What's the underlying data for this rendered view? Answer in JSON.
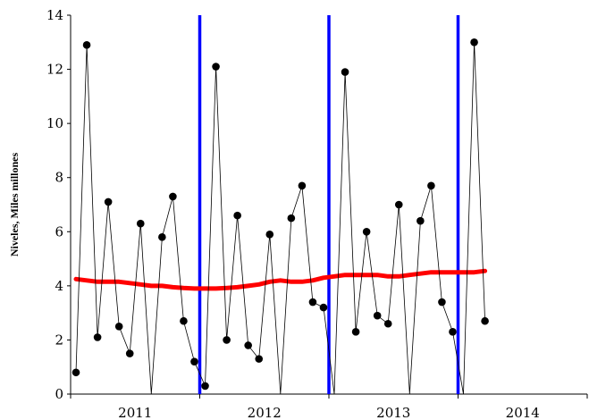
{
  "chart_data": {
    "type": "line",
    "title": "",
    "xlabel": "",
    "ylabel": "Niveles, Miles millones",
    "ylim": [
      0,
      14
    ],
    "yticks": [
      0,
      2,
      4,
      6,
      8,
      10,
      12,
      14
    ],
    "year_labels": [
      "2011",
      "2012",
      "2013",
      "2014"
    ],
    "x_months": [
      "2011-01",
      "2011-02",
      "2011-03",
      "2011-04",
      "2011-05",
      "2011-06",
      "2011-07",
      "2011-08",
      "2011-09",
      "2011-10",
      "2011-11",
      "2011-12",
      "2012-01",
      "2012-02",
      "2012-03",
      "2012-04",
      "2012-05",
      "2012-06",
      "2012-07",
      "2012-08",
      "2012-09",
      "2012-10",
      "2012-11",
      "2012-12",
      "2013-01",
      "2013-02",
      "2013-03",
      "2013-04",
      "2013-05",
      "2013-06",
      "2013-07",
      "2013-08",
      "2013-09",
      "2013-10",
      "2013-11",
      "2013-12",
      "2014-01",
      "2014-02",
      "2014-03",
      "2014-04",
      "2014-05",
      "2014-06",
      "2014-07",
      "2014-08",
      "2014-09",
      "2014-10",
      "2014-11",
      "2014-12"
    ],
    "series": [
      {
        "values": [
          0.8,
          12.9,
          2.1,
          7.1,
          2.5,
          1.5,
          6.3,
          -0.8,
          5.8,
          7.3,
          2.7,
          1.2,
          0.3,
          12.1,
          2.0,
          6.6,
          1.8,
          1.3,
          5.9,
          -0.5,
          6.5,
          7.7,
          3.4,
          3.2,
          -0.6,
          11.9,
          2.3,
          6.0,
          2.9,
          2.6,
          7.0,
          -0.5,
          6.4,
          7.7,
          3.4,
          2.3,
          -1.0,
          13.0,
          2.7
        ],
        "line_color": "#000000",
        "marker": "circle"
      },
      {
        "values": [
          4.25,
          4.2,
          4.15,
          4.15,
          4.15,
          4.1,
          4.05,
          4.0,
          4.0,
          3.95,
          3.92,
          3.9,
          3.9,
          3.9,
          3.92,
          3.95,
          4.0,
          4.05,
          4.15,
          4.2,
          4.15,
          4.15,
          4.2,
          4.3,
          4.35,
          4.4,
          4.4,
          4.4,
          4.4,
          4.35,
          4.35,
          4.4,
          4.45,
          4.5,
          4.5,
          4.5,
          4.5,
          4.5,
          4.55
        ],
        "line_color": "#ff0000",
        "marker": "none"
      }
    ],
    "vlines": [
      {
        "x": "2011-12",
        "color": "#0000ff"
      },
      {
        "x": "2012-12",
        "color": "#0000ff"
      },
      {
        "x": "2013-12",
        "color": "#0000ff"
      }
    ],
    "grid": false,
    "legend": "none"
  }
}
